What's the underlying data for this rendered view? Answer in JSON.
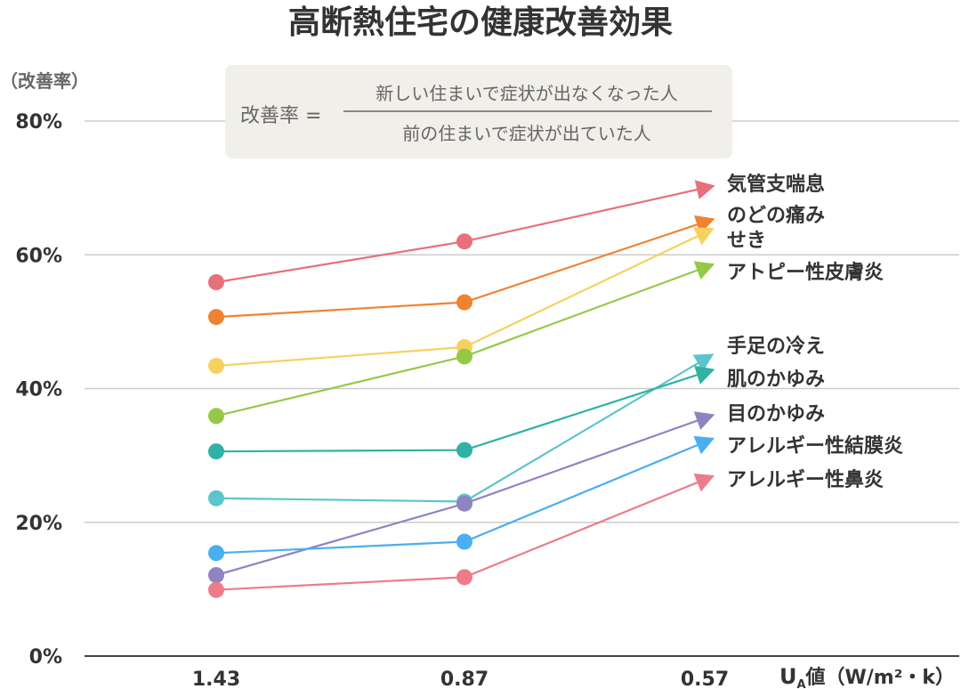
{
  "title": "高断熱住宅の健康改善効果",
  "ylabel": "（改善率）",
  "formula": {
    "lhs": "改善率 =",
    "numerator": "新しい住まいで症状が出なくなった人",
    "denominator": "前の住まいで症状が出ていた人"
  },
  "xlabel": {
    "u": "U",
    "a": "A",
    "rest": "値（W/m²・k）"
  },
  "colors": {
    "grid": "#cccccc",
    "axis": "#444444",
    "formula_bg": "#f1efe9"
  },
  "chart_data": {
    "type": "line",
    "title": "高断熱住宅の健康改善効果",
    "xlabel": "UA値（W/m²・k）",
    "ylabel": "（改善率）",
    "categories": [
      "1.43",
      "0.87",
      "0.57"
    ],
    "y_ticks": [
      "0%",
      "20%",
      "40%",
      "60%",
      "80%"
    ],
    "ylim": [
      0,
      80
    ],
    "grid": true,
    "legend": "right (labels at line ends)",
    "series": [
      {
        "name": "気管支喘息",
        "values": [
          55.9,
          62.0,
          70.0
        ],
        "color": "#e8707a"
      },
      {
        "name": "のどの痛み",
        "values": [
          50.7,
          52.9,
          64.9
        ],
        "color": "#f08330"
      },
      {
        "name": "せき",
        "values": [
          43.4,
          46.2,
          63.3
        ],
        "color": "#f7d15f"
      },
      {
        "name": "アトピー性皮膚炎",
        "values": [
          35.9,
          44.8,
          58.1
        ],
        "color": "#94c948"
      },
      {
        "name": "手足の冷え",
        "values": [
          23.6,
          23.1,
          44.4
        ],
        "color": "#5cc5cc"
      },
      {
        "name": "肌のかゆみ",
        "values": [
          30.6,
          30.8,
          42.4
        ],
        "color": "#2fb2a5"
      },
      {
        "name": "目のかゆみ",
        "values": [
          12.1,
          22.8,
          35.6
        ],
        "color": "#8f83c2"
      },
      {
        "name": "アレルギー性結膜炎",
        "values": [
          15.4,
          17.1,
          32.0
        ],
        "color": "#4aaef2"
      },
      {
        "name": "アレルギー性鼻炎",
        "values": [
          9.9,
          11.8,
          26.4
        ],
        "color": "#ec7c8a"
      }
    ]
  }
}
